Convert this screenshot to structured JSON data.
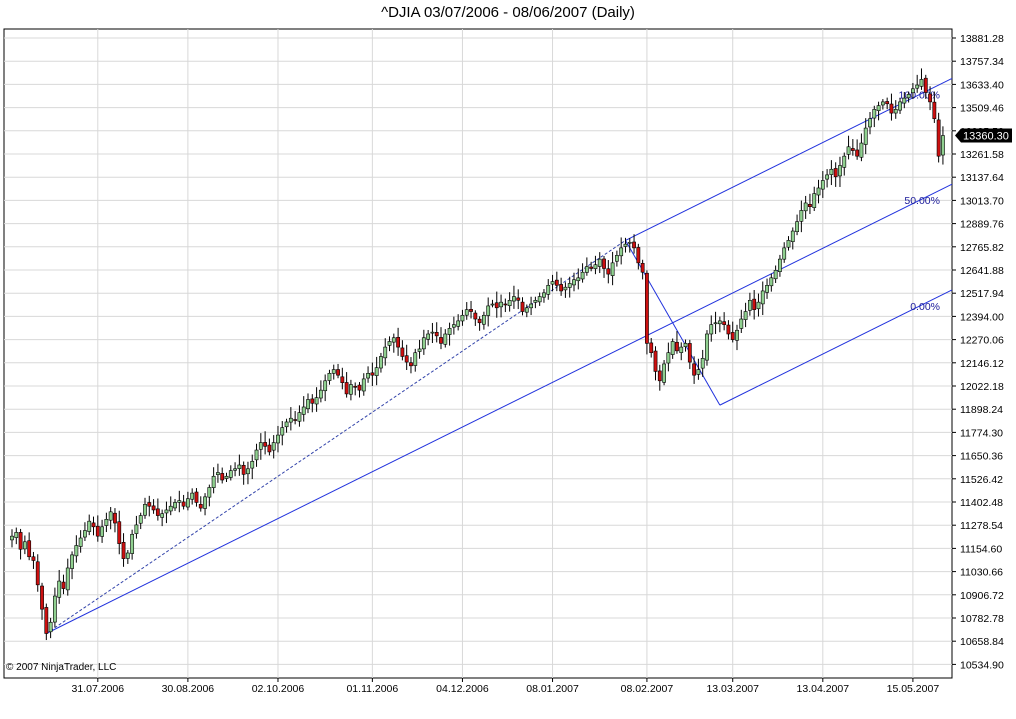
{
  "title": "^DJIA  03/07/2006 - 08/06/2007 (Daily)",
  "copyright": "© 2007 NinjaTrader, LLC",
  "colors": {
    "up_candle": "#90d090",
    "down_candle": "#cc1010",
    "wick": "#000000",
    "grid": "#d8d8d8",
    "pitchfork": "#2233dd",
    "trendline": "#3344aa",
    "last_price_bg": "#000000"
  },
  "chart_data": {
    "type": "candlestick",
    "ylim": [
      10500,
      13950
    ],
    "y_ticks": [
      "13881.28",
      "13757.34",
      "13633.40",
      "13509.46",
      "13385.52",
      "13261.58",
      "13137.64",
      "13013.70",
      "12889.76",
      "12765.82",
      "12641.88",
      "12517.94",
      "12394.00",
      "12270.06",
      "12146.12",
      "12022.18",
      "11898.24",
      "11774.30",
      "11650.36",
      "11526.42",
      "11402.48",
      "11278.54",
      "11154.60",
      "11030.66",
      "10906.72",
      "10782.78",
      "10658.84",
      "10534.90"
    ],
    "x_ticks": [
      "31.07.2006",
      "30.08.2006",
      "02.10.2006",
      "01.11.2006",
      "04.12.2006",
      "08.01.2007",
      "08.02.2007",
      "13.03.2007",
      "13.04.2007",
      "15.05.2007"
    ],
    "x_tick_bar_index": [
      20,
      41,
      62,
      84,
      105,
      126,
      148,
      168,
      189,
      210
    ],
    "last_price": "13360.30",
    "closes": [
      11220,
      11240,
      11150,
      11190,
      11110,
      11090,
      10960,
      10830,
      10700,
      10760,
      10900,
      10980,
      10940,
      11050,
      11120,
      11170,
      11210,
      11250,
      11300,
      11270,
      11220,
      11270,
      11310,
      11350,
      11290,
      11180,
      11100,
      11130,
      11230,
      11280,
      11330,
      11390,
      11380,
      11360,
      11330,
      11340,
      11360,
      11380,
      11400,
      11410,
      11380,
      11420,
      11450,
      11400,
      11370,
      11430,
      11480,
      11540,
      11560,
      11520,
      11540,
      11570,
      11580,
      11600,
      11550,
      11580,
      11620,
      11680,
      11720,
      11700,
      11670,
      11720,
      11760,
      11800,
      11830,
      11850,
      11840,
      11880,
      11910,
      11950,
      11930,
      11960,
      12000,
      12050,
      12090,
      12110,
      12080,
      12040,
      11980,
      12030,
      12020,
      12000,
      12060,
      12090,
      12080,
      12120,
      12180,
      12230,
      12260,
      12280,
      12230,
      12180,
      12150,
      12130,
      12200,
      12220,
      12280,
      12300,
      12310,
      12290,
      12250,
      12300,
      12330,
      12350,
      12370,
      12400,
      12430,
      12420,
      12380,
      12360,
      12400,
      12450,
      12460,
      12440,
      12470,
      12460,
      12480,
      12500,
      12480,
      12420,
      12440,
      12460,
      12480,
      12500,
      12520,
      12560,
      12580,
      12560,
      12530,
      12550,
      12570,
      12590,
      12600,
      12630,
      12660,
      12650,
      12670,
      12700,
      12650,
      12620,
      12680,
      12720,
      12760,
      12780,
      12790,
      12760,
      12680,
      12630,
      12250,
      12200,
      12100,
      12050,
      12140,
      12200,
      12260,
      12210,
      12230,
      12250,
      12150,
      12080,
      12110,
      12170,
      12300,
      12350,
      12360,
      12370,
      12350,
      12300,
      12270,
      12320,
      12380,
      12420,
      12480,
      12430,
      12470,
      12530,
      12560,
      12600,
      12640,
      12700,
      12760,
      12800,
      12850,
      12900,
      12960,
      13000,
      12980,
      13050,
      13080,
      13120,
      13150,
      13180,
      13140,
      13200,
      13250,
      13300,
      13280,
      13250,
      13320,
      13400,
      13450,
      13500,
      13520,
      13540,
      13530,
      13480,
      13500,
      13540,
      13560,
      13580,
      13610,
      13630,
      13660,
      13590,
      13540,
      13450,
      13250,
      13360
    ]
  },
  "pitchfork": {
    "labels": [
      "100.00%",
      "50.00%",
      "0.00%"
    ],
    "pivot_a": {
      "bar": 8,
      "price": 10700
    },
    "pivot_b": {
      "bar": 143,
      "price": 12800
    },
    "pivot_c": {
      "bar": 165,
      "price": 11920
    }
  }
}
